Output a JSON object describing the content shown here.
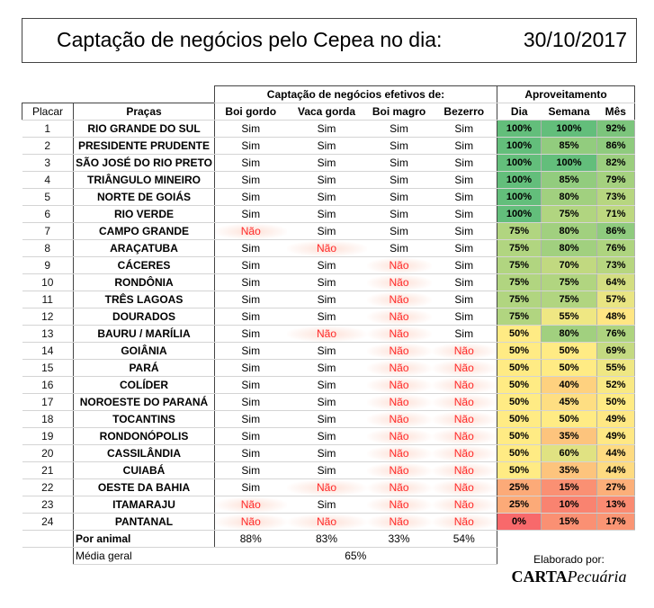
{
  "title": {
    "text": "Captação de negócios pelo Cepea no dia:",
    "date": "30/10/2017"
  },
  "headers": {
    "group_captacao": "Captação de negócios efetivos de:",
    "group_aproveitamento": "Aproveitamento",
    "placar": "Placar",
    "pracas": "Praças",
    "boi_gordo": "Boi gordo",
    "vaca_gorda": "Vaca gorda",
    "boi_magro": "Boi magro",
    "bezerro": "Bezerro",
    "dia": "Dia",
    "semana": "Semana",
    "mes": "Mês"
  },
  "rows": [
    {
      "placar": "1",
      "praca": "RIO GRANDE DO SUL",
      "boi_gordo": "Sim",
      "vaca_gorda": "Sim",
      "boi_magro": "Sim",
      "bezerro": "Sim",
      "dia": "100%",
      "semana": "100%",
      "mes": "92%"
    },
    {
      "placar": "2",
      "praca": "PRESIDENTE PRUDENTE",
      "boi_gordo": "Sim",
      "vaca_gorda": "Sim",
      "boi_magro": "Sim",
      "bezerro": "Sim",
      "dia": "100%",
      "semana": "85%",
      "mes": "86%"
    },
    {
      "placar": "3",
      "praca": "SÃO JOSÉ DO RIO PRETO",
      "boi_gordo": "Sim",
      "vaca_gorda": "Sim",
      "boi_magro": "Sim",
      "bezerro": "Sim",
      "dia": "100%",
      "semana": "100%",
      "mes": "82%"
    },
    {
      "placar": "4",
      "praca": "TRIÂNGULO MINEIRO",
      "boi_gordo": "Sim",
      "vaca_gorda": "Sim",
      "boi_magro": "Sim",
      "bezerro": "Sim",
      "dia": "100%",
      "semana": "85%",
      "mes": "79%"
    },
    {
      "placar": "5",
      "praca": "NORTE DE GOIÁS",
      "boi_gordo": "Sim",
      "vaca_gorda": "Sim",
      "boi_magro": "Sim",
      "bezerro": "Sim",
      "dia": "100%",
      "semana": "80%",
      "mes": "73%"
    },
    {
      "placar": "6",
      "praca": "RIO VERDE",
      "boi_gordo": "Sim",
      "vaca_gorda": "Sim",
      "boi_magro": "Sim",
      "bezerro": "Sim",
      "dia": "100%",
      "semana": "75%",
      "mes": "71%"
    },
    {
      "placar": "7",
      "praca": "CAMPO GRANDE",
      "boi_gordo": "Não",
      "vaca_gorda": "Sim",
      "boi_magro": "Sim",
      "bezerro": "Sim",
      "dia": "75%",
      "semana": "80%",
      "mes": "86%"
    },
    {
      "placar": "8",
      "praca": "ARAÇATUBA",
      "boi_gordo": "Sim",
      "vaca_gorda": "Não",
      "boi_magro": "Sim",
      "bezerro": "Sim",
      "dia": "75%",
      "semana": "80%",
      "mes": "76%"
    },
    {
      "placar": "9",
      "praca": "CÁCERES",
      "boi_gordo": "Sim",
      "vaca_gorda": "Sim",
      "boi_magro": "Não",
      "bezerro": "Sim",
      "dia": "75%",
      "semana": "70%",
      "mes": "73%"
    },
    {
      "placar": "10",
      "praca": "RONDÔNIA",
      "boi_gordo": "Sim",
      "vaca_gorda": "Sim",
      "boi_magro": "Não",
      "bezerro": "Sim",
      "dia": "75%",
      "semana": "75%",
      "mes": "64%"
    },
    {
      "placar": "11",
      "praca": "TRÊS LAGOAS",
      "boi_gordo": "Sim",
      "vaca_gorda": "Sim",
      "boi_magro": "Não",
      "bezerro": "Sim",
      "dia": "75%",
      "semana": "75%",
      "mes": "57%"
    },
    {
      "placar": "12",
      "praca": "DOURADOS",
      "boi_gordo": "Sim",
      "vaca_gorda": "Sim",
      "boi_magro": "Não",
      "bezerro": "Sim",
      "dia": "75%",
      "semana": "55%",
      "mes": "48%"
    },
    {
      "placar": "13",
      "praca": "BAURU / MARÍLIA",
      "boi_gordo": "Sim",
      "vaca_gorda": "Não",
      "boi_magro": "Não",
      "bezerro": "Sim",
      "dia": "50%",
      "semana": "80%",
      "mes": "76%"
    },
    {
      "placar": "14",
      "praca": "GOIÂNIA",
      "boi_gordo": "Sim",
      "vaca_gorda": "Sim",
      "boi_magro": "Não",
      "bezerro": "Não",
      "dia": "50%",
      "semana": "50%",
      "mes": "69%"
    },
    {
      "placar": "15",
      "praca": "PARÁ",
      "boi_gordo": "Sim",
      "vaca_gorda": "Sim",
      "boi_magro": "Não",
      "bezerro": "Não",
      "dia": "50%",
      "semana": "50%",
      "mes": "55%"
    },
    {
      "placar": "16",
      "praca": "COLÍDER",
      "boi_gordo": "Sim",
      "vaca_gorda": "Sim",
      "boi_magro": "Não",
      "bezerro": "Não",
      "dia": "50%",
      "semana": "40%",
      "mes": "52%"
    },
    {
      "placar": "17",
      "praca": "NOROESTE DO PARANÁ",
      "boi_gordo": "Sim",
      "vaca_gorda": "Sim",
      "boi_magro": "Não",
      "bezerro": "Não",
      "dia": "50%",
      "semana": "45%",
      "mes": "50%"
    },
    {
      "placar": "18",
      "praca": "TOCANTINS",
      "boi_gordo": "Sim",
      "vaca_gorda": "Sim",
      "boi_magro": "Não",
      "bezerro": "Não",
      "dia": "50%",
      "semana": "50%",
      "mes": "49%"
    },
    {
      "placar": "19",
      "praca": "RONDONÓPOLIS",
      "boi_gordo": "Sim",
      "vaca_gorda": "Sim",
      "boi_magro": "Não",
      "bezerro": "Não",
      "dia": "50%",
      "semana": "35%",
      "mes": "49%"
    },
    {
      "placar": "20",
      "praca": "CASSILÂNDIA",
      "boi_gordo": "Sim",
      "vaca_gorda": "Sim",
      "boi_magro": "Não",
      "bezerro": "Não",
      "dia": "50%",
      "semana": "60%",
      "mes": "44%"
    },
    {
      "placar": "21",
      "praca": "CUIABÁ",
      "boi_gordo": "Sim",
      "vaca_gorda": "Sim",
      "boi_magro": "Não",
      "bezerro": "Não",
      "dia": "50%",
      "semana": "35%",
      "mes": "44%"
    },
    {
      "placar": "22",
      "praca": "OESTE DA BAHIA",
      "boi_gordo": "Sim",
      "vaca_gorda": "Não",
      "boi_magro": "Não",
      "bezerro": "Não",
      "dia": "25%",
      "semana": "15%",
      "mes": "27%"
    },
    {
      "placar": "23",
      "praca": "ITAMARAJU",
      "boi_gordo": "Não",
      "vaca_gorda": "Sim",
      "boi_magro": "Não",
      "bezerro": "Não",
      "dia": "25%",
      "semana": "10%",
      "mes": "13%"
    },
    {
      "placar": "24",
      "praca": "PANTANAL",
      "boi_gordo": "Não",
      "vaca_gorda": "Não",
      "boi_magro": "Não",
      "bezerro": "Não",
      "dia": "0%",
      "semana": "15%",
      "mes": "17%"
    }
  ],
  "footer": {
    "por_animal_label": "Por animal",
    "por_animal": {
      "boi_gordo": "88%",
      "vaca_gorda": "83%",
      "boi_magro": "33%",
      "bezerro": "54%"
    },
    "media_label": "Média geral",
    "media_value": "65%"
  },
  "credit": {
    "label": "Elaborado por:",
    "brand_main": "CARTA",
    "brand_sub": "Pecuária"
  },
  "colors": {
    "sim_text": "#000000",
    "nao_text": "#ff2a2a",
    "scale_low": "#f8696b",
    "scale_mid": "#ffeb84",
    "scale_high": "#63be7b"
  }
}
